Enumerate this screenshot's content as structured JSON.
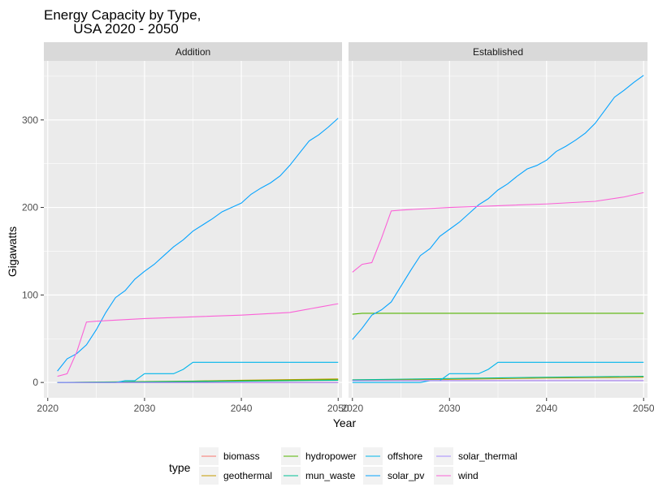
{
  "chart_data": {
    "type": "line",
    "title_line1": "Energy Capacity by Type,",
    "title_line2": "USA 2020 - 2050",
    "xlabel": "Year",
    "ylabel": "Gigawatts",
    "xlim": [
      2019.6,
      2050.4
    ],
    "ylim": [
      -17.5,
      367.5
    ],
    "x_ticks": [
      2020,
      2030,
      2040,
      2050
    ],
    "y_ticks": [
      0,
      100,
      200,
      300
    ],
    "grid": true,
    "legend": {
      "title": "type",
      "position": "bottom"
    },
    "panels": [
      {
        "name": "Addition",
        "series": [
          {
            "name": "biomass",
            "color": "#F8766D",
            "x": [
              2021,
              2050
            ],
            "y": [
              0,
              0
            ]
          },
          {
            "name": "geothermal",
            "color": "#C49A00",
            "x": [
              2021,
              2030,
              2035,
              2040,
              2050
            ],
            "y": [
              0,
              0.5,
              1.5,
              2.5,
              4
            ]
          },
          {
            "name": "hydropower",
            "color": "#53B400",
            "x": [
              2021,
              2030,
              2040,
              2050
            ],
            "y": [
              0,
              1,
              2,
              3
            ]
          },
          {
            "name": "mun_waste",
            "color": "#00C094",
            "x": [
              2021,
              2030,
              2040,
              2050
            ],
            "y": [
              0,
              0.5,
              1.5,
              2.5
            ]
          },
          {
            "name": "offshore",
            "color": "#00B6EB",
            "x": [
              2021,
              2027,
              2028,
              2029,
              2030,
              2033,
              2034,
              2035,
              2050
            ],
            "y": [
              0,
              0,
              2,
              2,
              10,
              10,
              15,
              23,
              23
            ]
          },
          {
            "name": "solar_pv",
            "color": "#06A4FF",
            "x": [
              2021,
              2022,
              2023,
              2024,
              2025,
              2026,
              2027,
              2028,
              2029,
              2030,
              2031,
              2032,
              2033,
              2034,
              2035,
              2036,
              2037,
              2038,
              2039,
              2040,
              2041,
              2042,
              2043,
              2044,
              2045,
              2046,
              2047,
              2048,
              2049,
              2050
            ],
            "y": [
              13,
              27,
              33,
              43,
              60,
              80,
              97,
              105,
              118,
              127,
              135,
              145,
              155,
              163,
              173,
              180,
              187,
              195,
              200,
              205,
              215,
              222,
              228,
              236,
              248,
              262,
              276,
              283,
              292,
              302
            ]
          },
          {
            "name": "solar_thermal",
            "color": "#A58AFF",
            "x": [
              2021,
              2050
            ],
            "y": [
              0,
              0
            ]
          },
          {
            "name": "wind",
            "color": "#FB61D7",
            "x": [
              2021,
              2022,
              2023,
              2024,
              2025,
              2030,
              2035,
              2040,
              2045,
              2048,
              2050
            ],
            "y": [
              7,
              10,
              35,
              69,
              70,
              73,
              75,
              77,
              80,
              86,
              90
            ]
          }
        ]
      },
      {
        "name": "Established",
        "series": [
          {
            "name": "biomass",
            "color": "#F8766D",
            "x": [
              2020,
              2030,
              2050
            ],
            "y": [
              2,
              2,
              2
            ]
          },
          {
            "name": "geothermal",
            "color": "#C49A00",
            "x": [
              2020,
              2030,
              2040,
              2050
            ],
            "y": [
              3,
              3.5,
              5,
              6
            ]
          },
          {
            "name": "hydropower",
            "color": "#53B400",
            "x": [
              2020,
              2021,
              2050
            ],
            "y": [
              78,
              79,
              79
            ]
          },
          {
            "name": "mun_waste",
            "color": "#00C094",
            "x": [
              2020,
              2030,
              2040,
              2050
            ],
            "y": [
              3,
              4.5,
              6,
              7
            ]
          },
          {
            "name": "offshore",
            "color": "#00B6EB",
            "x": [
              2020,
              2027,
              2028,
              2029,
              2030,
              2033,
              2034,
              2035,
              2050
            ],
            "y": [
              0,
              0,
              2,
              2,
              10,
              10,
              15,
              23,
              23
            ]
          },
          {
            "name": "solar_pv",
            "color": "#06A4FF",
            "x": [
              2020,
              2021,
              2022,
              2023,
              2024,
              2025,
              2026,
              2027,
              2028,
              2029,
              2030,
              2031,
              2032,
              2033,
              2034,
              2035,
              2036,
              2037,
              2038,
              2039,
              2040,
              2041,
              2042,
              2043,
              2044,
              2045,
              2046,
              2047,
              2048,
              2049,
              2050
            ],
            "y": [
              49,
              62,
              77,
              83,
              92,
              110,
              128,
              145,
              153,
              167,
              175,
              183,
              193,
              203,
              210,
              220,
              227,
              236,
              244,
              248,
              254,
              264,
              270,
              277,
              285,
              296,
              311,
              326,
              334,
              343,
              351
            ]
          },
          {
            "name": "solar_thermal",
            "color": "#A58AFF",
            "x": [
              2020,
              2050
            ],
            "y": [
              2,
              2
            ]
          },
          {
            "name": "wind",
            "color": "#FB61D7",
            "x": [
              2020,
              2021,
              2022,
              2023,
              2024,
              2025,
              2030,
              2035,
              2040,
              2045,
              2048,
              2050
            ],
            "y": [
              126,
              135,
              137,
              165,
              196,
              197,
              200,
              202,
              204,
              207,
              212,
              217
            ]
          }
        ]
      }
    ],
    "legend_order": [
      "biomass",
      "geothermal",
      "hydropower",
      "mun_waste",
      "offshore",
      "solar_pv",
      "solar_thermal",
      "wind"
    ]
  }
}
